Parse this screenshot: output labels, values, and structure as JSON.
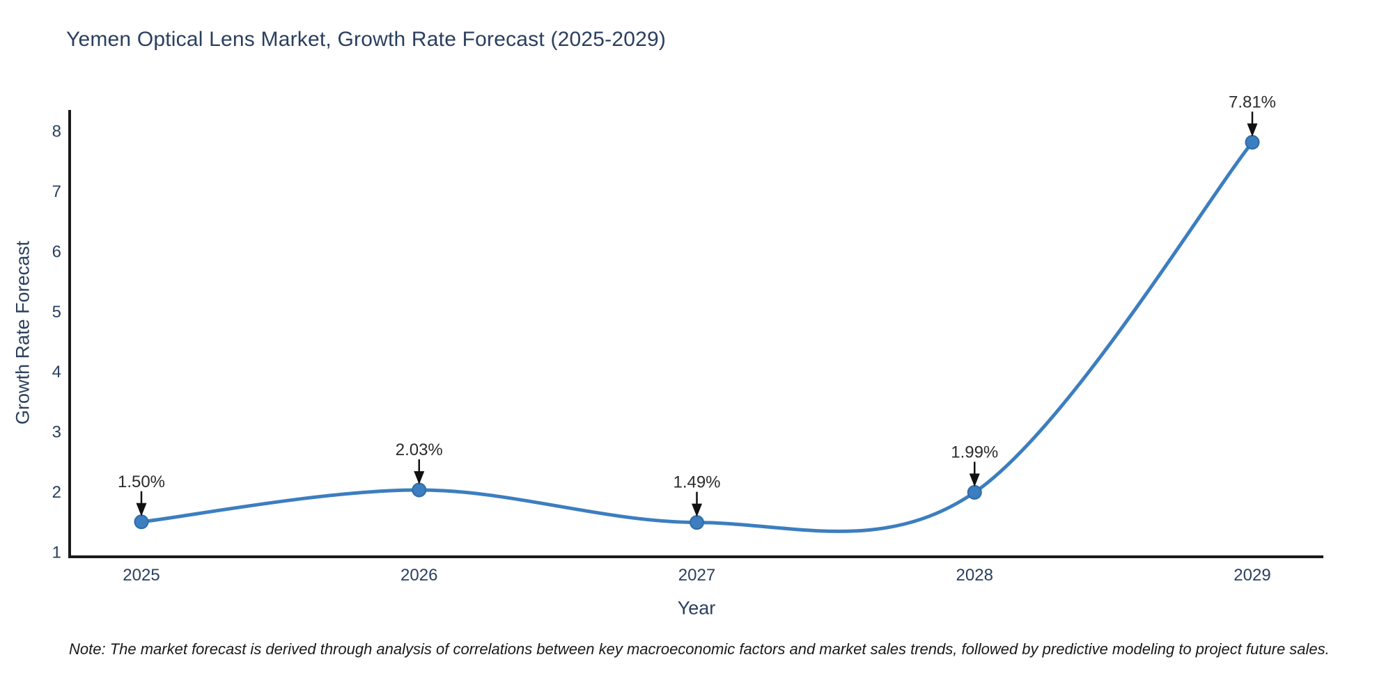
{
  "title": "Yemen Optical Lens Market, Growth Rate Forecast (2025-2029)",
  "note": "Note: The market forecast is derived through analysis of correlations between key macroeconomic factors and market sales trends, followed by predictive modeling to project future sales.",
  "chart_data": {
    "type": "line",
    "title": "Yemen Optical Lens Market, Growth Rate Forecast (2025-2029)",
    "xlabel": "Year",
    "ylabel": "Growth Rate Forecast",
    "x": [
      2025,
      2026,
      2027,
      2028,
      2029
    ],
    "values": [
      1.5,
      2.03,
      1.49,
      1.99,
      7.81
    ],
    "point_labels": [
      "1.50%",
      "2.03%",
      "1.49%",
      "1.99%",
      "7.81%"
    ],
    "xticks": [
      "2025",
      "2026",
      "2027",
      "2028",
      "2029"
    ],
    "yticks": [
      1,
      2,
      3,
      4,
      5,
      6,
      7,
      8
    ],
    "ylim": [
      1,
      8
    ],
    "line_shape": "spline",
    "grid": false,
    "legend": "none",
    "colors": {
      "background": "#ffffff",
      "line": "#3c7ebf",
      "marker": "#3c7ebf",
      "marker_edge": "#2d6ca8",
      "axis": "#1a1a1a",
      "tick_text": "#2a3f5f",
      "title_text": "#2a3f5f",
      "annotation_text": "#2b2b2b",
      "arrow": "#111111"
    }
  }
}
